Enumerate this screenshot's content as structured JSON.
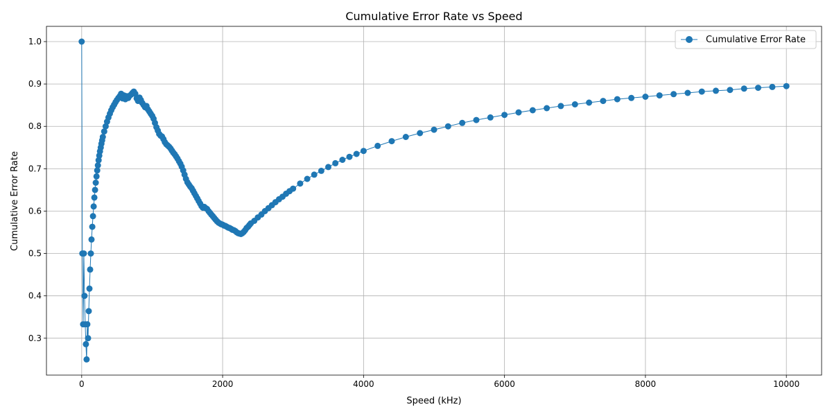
{
  "chart_data": {
    "type": "line",
    "title": "Cumulative Error Rate vs Speed",
    "xlabel": "Speed (kHz)",
    "ylabel": "Cumulative Error Rate",
    "xlim": [
      -500,
      10500
    ],
    "ylim": [
      0.213,
      1.036
    ],
    "xticks": [
      0,
      2000,
      4000,
      6000,
      8000,
      10000
    ],
    "xtick_labels": [
      "0",
      "2000",
      "4000",
      "6000",
      "8000",
      "10000"
    ],
    "yticks": [
      0.3,
      0.4,
      0.5,
      0.6,
      0.7,
      0.8,
      0.9,
      1.0
    ],
    "ytick_labels": [
      "0.3",
      "0.4",
      "0.5",
      "0.6",
      "0.7",
      "0.8",
      "0.9",
      "1.0"
    ],
    "grid": true,
    "legend_position": "top-right",
    "color": "#1f77b4",
    "series": [
      {
        "name": "Cumulative Error Rate",
        "marker": "circle",
        "x": [
          0,
          10,
          20,
          30,
          40,
          50,
          60,
          70,
          80,
          90,
          100,
          110,
          120,
          130,
          140,
          150,
          160,
          170,
          180,
          190,
          200,
          210,
          220,
          230,
          240,
          250,
          260,
          270,
          280,
          290,
          300,
          320,
          340,
          360,
          380,
          400,
          420,
          440,
          460,
          480,
          500,
          520,
          540,
          560,
          580,
          600,
          620,
          640,
          660,
          680,
          700,
          720,
          740,
          760,
          780,
          800,
          820,
          840,
          860,
          880,
          900,
          920,
          940,
          960,
          980,
          1000,
          1020,
          1040,
          1060,
          1080,
          1100,
          1120,
          1140,
          1160,
          1180,
          1200,
          1220,
          1240,
          1260,
          1280,
          1300,
          1320,
          1340,
          1360,
          1380,
          1400,
          1420,
          1440,
          1460,
          1480,
          1500,
          1520,
          1540,
          1560,
          1580,
          1600,
          1620,
          1640,
          1660,
          1680,
          1700,
          1720,
          1740,
          1760,
          1780,
          1800,
          1820,
          1840,
          1860,
          1880,
          1900,
          1920,
          1940,
          1960,
          1980,
          2000,
          2020,
          2040,
          2060,
          2080,
          2100,
          2120,
          2140,
          2160,
          2180,
          2200,
          2220,
          2240,
          2260,
          2280,
          2300,
          2320,
          2340,
          2360,
          2380,
          2400,
          2450,
          2500,
          2550,
          2600,
          2650,
          2700,
          2750,
          2800,
          2850,
          2900,
          2950,
          3000,
          3100,
          3200,
          3300,
          3400,
          3500,
          3600,
          3700,
          3800,
          3900,
          4000,
          4200,
          4400,
          4600,
          4800,
          5000,
          5200,
          5400,
          5600,
          5800,
          6000,
          6200,
          6400,
          6600,
          6800,
          7000,
          7200,
          7400,
          7600,
          7800,
          8000,
          8200,
          8400,
          8600,
          8800,
          9000,
          9200,
          9400,
          9600,
          9800,
          10000
        ],
        "y": [
          1.0,
          0.5,
          0.333,
          0.5,
          0.4,
          0.333,
          0.286,
          0.25,
          0.333,
          0.3,
          0.364,
          0.417,
          0.462,
          0.5,
          0.533,
          0.563,
          0.588,
          0.611,
          0.632,
          0.65,
          0.667,
          0.682,
          0.696,
          0.708,
          0.72,
          0.731,
          0.741,
          0.75,
          0.759,
          0.767,
          0.775,
          0.788,
          0.8,
          0.811,
          0.821,
          0.83,
          0.838,
          0.845,
          0.851,
          0.857,
          0.862,
          0.867,
          0.871,
          0.877,
          0.866,
          0.873,
          0.864,
          0.871,
          0.867,
          0.872,
          0.875,
          0.879,
          0.882,
          0.877,
          0.866,
          0.86,
          0.868,
          0.862,
          0.855,
          0.85,
          0.845,
          0.848,
          0.84,
          0.835,
          0.83,
          0.825,
          0.818,
          0.808,
          0.798,
          0.79,
          0.782,
          0.778,
          0.776,
          0.77,
          0.763,
          0.758,
          0.755,
          0.752,
          0.748,
          0.743,
          0.738,
          0.734,
          0.729,
          0.724,
          0.718,
          0.712,
          0.705,
          0.696,
          0.686,
          0.676,
          0.668,
          0.663,
          0.658,
          0.654,
          0.648,
          0.642,
          0.636,
          0.63,
          0.624,
          0.618,
          0.612,
          0.608,
          0.61,
          0.607,
          0.605,
          0.6,
          0.596,
          0.592,
          0.588,
          0.584,
          0.58,
          0.576,
          0.573,
          0.571,
          0.569,
          0.568,
          0.566,
          0.565,
          0.563,
          0.561,
          0.56,
          0.558,
          0.556,
          0.555,
          0.553,
          0.55,
          0.548,
          0.547,
          0.546,
          0.548,
          0.551,
          0.555,
          0.56,
          0.563,
          0.567,
          0.571,
          0.577,
          0.585,
          0.592,
          0.6,
          0.607,
          0.614,
          0.621,
          0.628,
          0.634,
          0.641,
          0.647,
          0.653,
          0.665,
          0.676,
          0.686,
          0.695,
          0.704,
          0.713,
          0.721,
          0.728,
          0.735,
          0.742,
          0.754,
          0.765,
          0.775,
          0.784,
          0.792,
          0.8,
          0.808,
          0.815,
          0.821,
          0.827,
          0.833,
          0.838,
          0.843,
          0.848,
          0.852,
          0.856,
          0.86,
          0.864,
          0.867,
          0.87,
          0.873,
          0.876,
          0.879,
          0.882,
          0.884,
          0.886,
          0.889,
          0.891,
          0.893,
          0.895
        ]
      }
    ]
  }
}
